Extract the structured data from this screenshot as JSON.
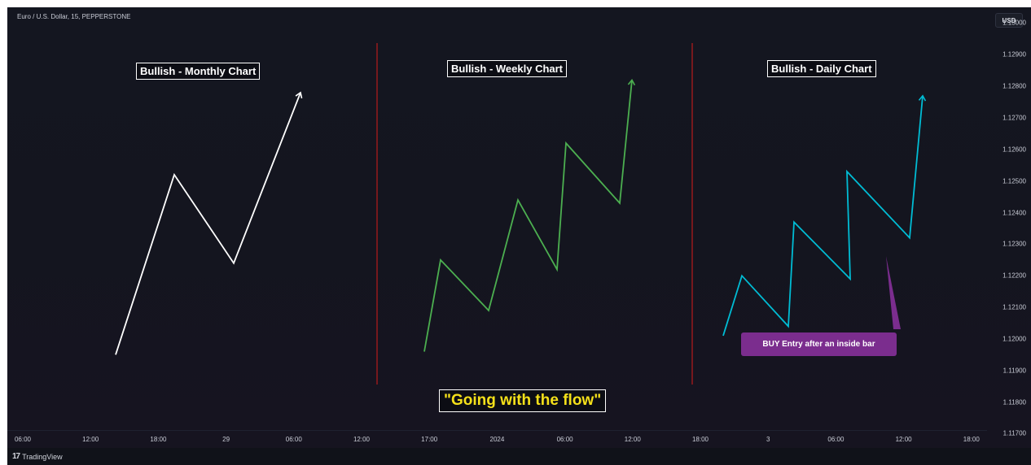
{
  "header": {
    "symbol": "Euro / U.S. Dollar, 15, PEPPERSTONE",
    "currency": "USD"
  },
  "footer": {
    "brand": "TradingView",
    "logo_mark": "17"
  },
  "annotations": {
    "monthly_title": "Bullish - Monthly Chart",
    "weekly_title": "Bullish - Weekly Chart",
    "daily_title": "Bullish - Daily Chart",
    "flow_title": "\"Going with the flow\"",
    "buy_label": "BUY Entry after an inside bar"
  },
  "colors": {
    "monthly_line": "#ffffff",
    "weekly_line": "#4caf50",
    "daily_line": "#00bcd4",
    "divider": "#b71c1c",
    "callout": "#7b2d8e",
    "flow_text": "#f5e11a"
  },
  "chart_data": {
    "type": "line",
    "title": "",
    "xlabel": "",
    "ylabel": "",
    "y_ticks": [
      "1.13000",
      "1.12900",
      "1.12800",
      "1.12700",
      "1.12600",
      "1.12500",
      "1.12400",
      "1.12300",
      "1.12200",
      "1.12100",
      "1.12000",
      "1.11900",
      "1.11800",
      "1.11700"
    ],
    "x_ticks": [
      "06:00",
      "12:00",
      "18:00",
      "29",
      "06:00",
      "12:00",
      "17:00",
      "2024",
      "06:00",
      "12:00",
      "18:00",
      "3",
      "06:00",
      "12:00",
      "18:00"
    ],
    "ylim": [
      1.1166,
      1.1305
    ],
    "grid": false,
    "series": [
      {
        "x": [
          0,
          1,
          2,
          3
        ],
        "y": [
          1.1195,
          1.1252,
          1.1224,
          1.1278
        ]
      },
      {
        "x": [
          0,
          1,
          2,
          3,
          4,
          5,
          6,
          7
        ],
        "y": [
          1.1196,
          1.1225,
          1.1209,
          1.1244,
          1.1222,
          1.1262,
          1.1243,
          1.1282
        ]
      },
      {
        "x": [
          0,
          1,
          2,
          3,
          4,
          5,
          6,
          7
        ],
        "y": [
          1.1201,
          1.122,
          1.1204,
          1.1237,
          1.1219,
          1.1253,
          1.1232,
          1.1277
        ]
      }
    ]
  }
}
